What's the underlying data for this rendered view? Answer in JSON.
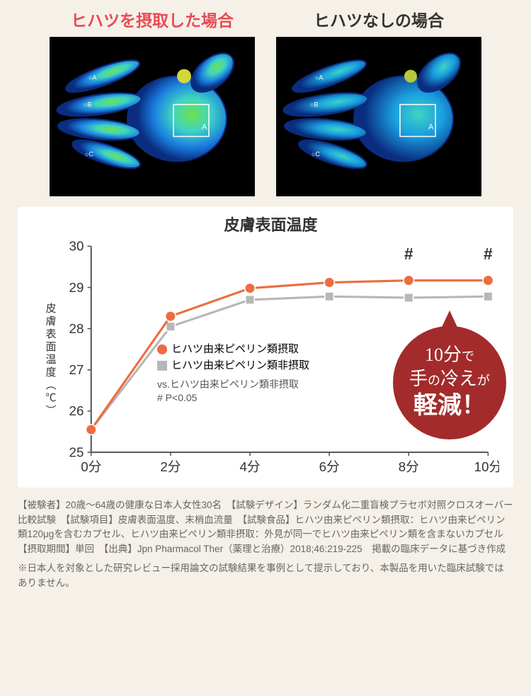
{
  "thermal": {
    "left_title": "ヒハツを摂取した場合",
    "right_title": "ヒハツなしの場合",
    "bg_color": "#000000",
    "warm_label": true
  },
  "chart": {
    "type": "line",
    "title": "皮膚表面温度",
    "ylabel": "皮膚表面温度（℃）",
    "xlim": [
      0,
      10
    ],
    "ylim": [
      25,
      30
    ],
    "yticks": [
      25,
      26,
      27,
      28,
      29,
      30
    ],
    "xticks": [
      "0分",
      "2分",
      "4分",
      "6分",
      "8分",
      "10分"
    ],
    "x_values": [
      0,
      2,
      4,
      6,
      8,
      10
    ],
    "series": [
      {
        "name": "ヒハツ由来ピペリン類摂取",
        "color": "#ec6d3f",
        "marker": "circle",
        "marker_fill": "#ec6d3f",
        "marker_stroke": "#ec6d3f",
        "line_width": 3,
        "y": [
          25.55,
          28.3,
          28.98,
          29.12,
          29.17,
          29.17
        ]
      },
      {
        "name": "ヒハツ由来ピペリン類非摂取",
        "color": "#b7b7b7",
        "marker": "square",
        "marker_fill": "#b7b7b7",
        "marker_stroke": "#b7b7b7",
        "line_width": 3,
        "y": [
          25.55,
          28.05,
          28.7,
          28.78,
          28.75,
          28.78
        ]
      }
    ],
    "sig_marks": [
      {
        "x": 8,
        "label": "#"
      },
      {
        "x": 10,
        "label": "#"
      }
    ],
    "legend_sub1": "vs.ヒハツ由来ピペリン類非摂取",
    "legend_sub2": "# P<0.05",
    "axis_color": "#555555",
    "grid_color": "#d9d9d9",
    "tick_fontsize": 18,
    "title_fontsize": 22,
    "background_color": "#ffffff"
  },
  "callout": {
    "line1_a": "10分",
    "line1_b": "で",
    "line2_a": "手",
    "line2_b": "の",
    "line2_c": "冷え",
    "line2_d": "が",
    "line3": "軽減！",
    "bg": "#a32b2b",
    "text_color": "#ffffff"
  },
  "footnote": {
    "p1": "【被験者】20歳〜64歳の健康な日本人女性30名　【試験デザイン】ランダム化二重盲検プラセボ対照クロスオーバー比較試験　【試験項目】皮膚表面温度、末梢血流量　【試験食品】ヒハツ由来ピペリン類摂取：ヒハツ由来ピペリン類120μgを含むカプセル、ヒハツ由来ピペリン類非摂取：外見が同一でヒハツ由来ピペリン類を含まないカプセル　【摂取期間】単回　【出典】Jpn Pharmacol Ther（薬理と治療）2018;46:219-225　掲載の臨床データに基づき作成",
    "p2": "※日本人を対象とした研究レビュー採用論文の試験結果を事例として提示しており、本製品を用いた臨床試験ではありません。"
  }
}
